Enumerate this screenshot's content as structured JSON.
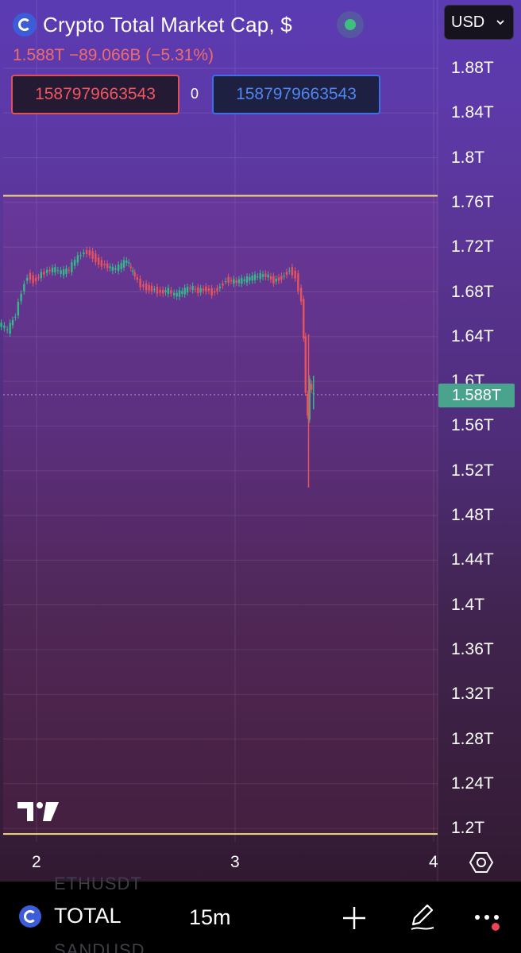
{
  "header": {
    "title": "Crypto Total Market Cap, $",
    "price": "1.588T",
    "change": "−89.066B",
    "change_pct": "(−5.31%)",
    "currency": "USD",
    "sell_value": "1587979663543",
    "spread": "0",
    "buy_value": "1587979663543",
    "status_color": "#3fbf7f"
  },
  "price_tag": "1.588T",
  "chart_data": {
    "type": "candlestick",
    "title": "Crypto Total Market Cap, $",
    "y_ticks": [
      "1.88T",
      "1.84T",
      "1.8T",
      "1.76T",
      "1.72T",
      "1.68T",
      "1.64T",
      "1.6T",
      "1.56T",
      "1.52T",
      "1.48T",
      "1.44T",
      "1.4T",
      "1.36T",
      "1.32T",
      "1.28T",
      "1.24T",
      "1.2T"
    ],
    "x_ticks": [
      "2",
      "3",
      "4"
    ],
    "ylim": [
      1.2,
      1.88
    ],
    "xlim": [
      1.8,
      4.0
    ],
    "current_price": 1.588,
    "range_box": {
      "top": 1.766,
      "bottom": 1.195
    },
    "series": [
      {
        "values": [
          [
            1.8,
            1.652
          ],
          [
            1.83,
            1.65
          ],
          [
            1.86,
            1.645
          ],
          [
            1.9,
            1.66
          ],
          [
            1.93,
            1.68
          ],
          [
            1.96,
            1.695
          ],
          [
            1.99,
            1.69
          ],
          [
            2.03,
            1.696
          ],
          [
            2.06,
            1.699
          ],
          [
            2.1,
            1.7
          ],
          [
            2.13,
            1.697
          ],
          [
            2.17,
            1.7
          ],
          [
            2.2,
            1.708
          ],
          [
            2.23,
            1.714
          ],
          [
            2.26,
            1.716
          ],
          [
            2.29,
            1.712
          ],
          [
            2.32,
            1.706
          ],
          [
            2.35,
            1.704
          ],
          [
            2.39,
            1.7
          ],
          [
            2.42,
            1.702
          ],
          [
            2.46,
            1.708
          ],
          [
            2.48,
            1.7
          ],
          [
            2.5,
            1.694
          ],
          [
            2.53,
            1.686
          ],
          [
            2.56,
            1.684
          ],
          [
            2.6,
            1.682
          ],
          [
            2.63,
            1.68
          ],
          [
            2.67,
            1.681
          ],
          [
            2.7,
            1.677
          ],
          [
            2.74,
            1.68
          ],
          [
            2.78,
            1.684
          ],
          [
            2.82,
            1.681
          ],
          [
            2.86,
            1.683
          ],
          [
            2.89,
            1.679
          ],
          [
            2.93,
            1.685
          ],
          [
            2.96,
            1.691
          ],
          [
            3.0,
            1.689
          ],
          [
            3.04,
            1.69
          ],
          [
            3.08,
            1.692
          ],
          [
            3.12,
            1.694
          ],
          [
            3.16,
            1.695
          ],
          [
            3.2,
            1.69
          ],
          [
            3.24,
            1.693
          ],
          [
            3.28,
            1.7
          ],
          [
            3.31,
            1.694
          ],
          [
            3.34,
            1.672
          ],
          [
            3.35,
            1.64
          ],
          [
            3.36,
            1.59
          ],
          [
            3.37,
            1.568
          ],
          [
            3.38,
            1.6
          ],
          [
            3.39,
            1.59
          ],
          [
            3.4,
            1.588
          ]
        ]
      }
    ]
  },
  "bottom_bar": {
    "symbol": "TOTAL",
    "interval": "15m",
    "ghost_top": "ETHUSDT",
    "ghost_bottom": "SANDUSD"
  }
}
